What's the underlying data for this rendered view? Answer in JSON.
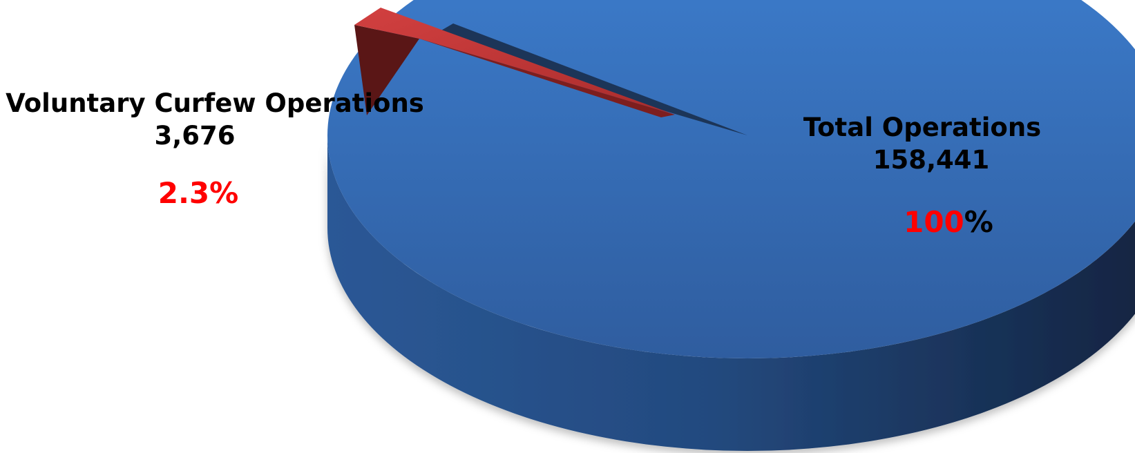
{
  "colors": {
    "total_slice": "#3a74c2",
    "voluntary_slice": "#c93a3a",
    "label_text": "#000000",
    "percent_accent": "#ff0000"
  },
  "chart_data": {
    "type": "pie",
    "style": "3d-exploded",
    "slices": [
      {
        "key": "voluntary",
        "label": "Voluntary Curfew Operations",
        "value_text": "3,676",
        "value": 3676,
        "percent_text": "2.3%",
        "percent": 2.3,
        "exploded": true
      },
      {
        "key": "total",
        "label": "Total Operations",
        "value_text": "158,441",
        "value": 158441,
        "percent_number": "100",
        "percent_sign": "%",
        "percent": 100,
        "exploded": false
      }
    ]
  }
}
